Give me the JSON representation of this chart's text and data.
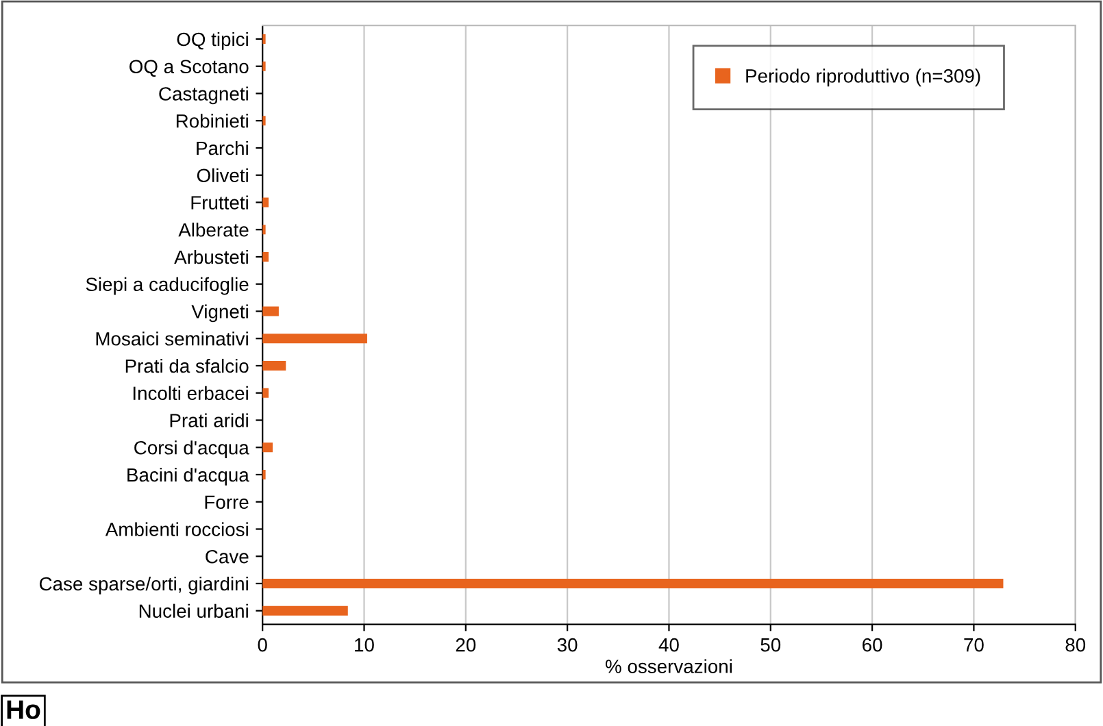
{
  "chart_data": {
    "type": "bar",
    "orientation": "horizontal",
    "xlabel": "% osservazioni",
    "categories": [
      "OQ tipici",
      "OQ a Scotano",
      "Castagneti",
      "Robinieti",
      "Parchi",
      "Oliveti",
      "Frutteti",
      "Alberate",
      "Arbusteti",
      "Siepi a caducifoglie",
      "Vigneti",
      "Mosaici seminativi",
      "Prati da sfalcio",
      "Incolti erbacei",
      "Prati aridi",
      "Corsi d'acqua",
      "Bacini d'acqua",
      "Forre",
      "Ambienti rocciosi",
      "Cave",
      "Case sparse/orti, giardini",
      "Nuclei urbani"
    ],
    "series": [
      {
        "name": "Periodo riproduttivo (n=309)",
        "color": "#e8641e",
        "values": [
          0.3,
          0.3,
          0,
          0.3,
          0,
          0,
          0.6,
          0.3,
          0.6,
          0,
          1.6,
          10.3,
          2.3,
          0.6,
          0,
          1.0,
          0.3,
          0,
          0,
          0,
          72.9,
          8.4
        ]
      }
    ],
    "xlim": [
      0,
      80
    ],
    "xticks": [
      0,
      10,
      20,
      30,
      40,
      50,
      60,
      70,
      80
    ],
    "grid": "x",
    "legend": "top right",
    "annotations": [
      "Ho"
    ]
  }
}
